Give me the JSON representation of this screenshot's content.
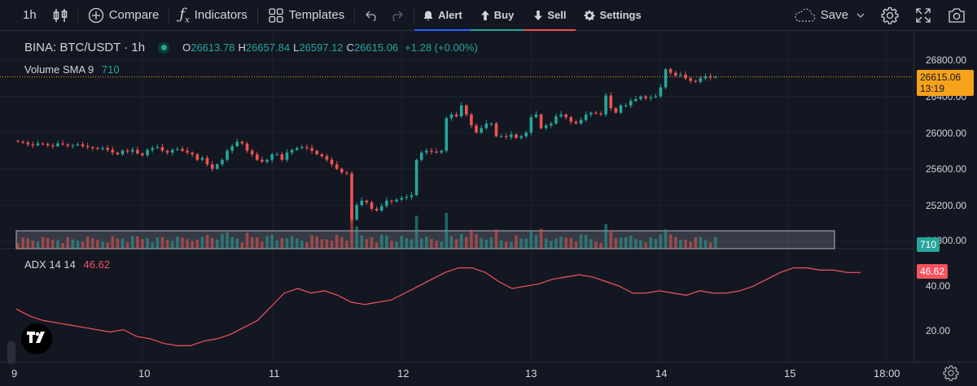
{
  "toolbar": {
    "interval": "1h",
    "compare_label": "Compare",
    "indicators_label": "Indicators",
    "templates_label": "Templates",
    "alert_label": "Alert",
    "buy_label": "Buy",
    "sell_label": "Sell",
    "settings_label": "Settings",
    "save_label": "Save",
    "icons": [
      "bar-style-icon",
      "compare-plus-icon",
      "fx-icon",
      "templates-grid-icon",
      "undo-icon",
      "redo-icon",
      "alarm-icon",
      "arrow-up-icon",
      "arrow-down-icon",
      "gear-icon",
      "cloud-icon",
      "chevron-down-icon",
      "settings-gear-icon",
      "fullscreen-icon",
      "snapshot-icon"
    ]
  },
  "legend": {
    "symbol": "BINA: BTC/USDT · 1h",
    "o_key": "O",
    "o_val": "26613.78",
    "h_key": "H",
    "h_val": "26657.84",
    "l_key": "L",
    "l_val": "26597.12",
    "c_key": "C",
    "c_val": "26615.06",
    "change": "+1.28 (+0.00%)",
    "volume_name": "Volume SMA 9",
    "volume_val": "710",
    "adx_name": "ADX 14 14",
    "adx_val": "46.62"
  },
  "price_scale": {
    "labels": [
      "26800.00",
      "26400.00",
      "26000.00",
      "25600.00",
      "25200.00",
      "24800.00"
    ],
    "last_price": "26615.06",
    "countdown": "13:19",
    "volume_tag": "710",
    "adx_labels": [
      "40.00",
      "20.00"
    ],
    "adx_tag": "46.62"
  },
  "time_axis": {
    "labels": [
      "9",
      "10",
      "11",
      "12",
      "13",
      "14",
      "15",
      "18:00"
    ]
  },
  "colors": {
    "up": "#26a69a",
    "down": "#ef5350",
    "adx_line": "#f7525f",
    "last_price_tag": "#f7a21b",
    "background": "#131722"
  },
  "chart_data": {
    "type": "candlestick",
    "ohlc": {
      "open": 26613.78,
      "high": 26657.84,
      "low": 26597.12,
      "close": 26615.06
    },
    "price_range": [
      24800,
      26850
    ],
    "closes": [
      25900,
      25890,
      25870,
      25860,
      25880,
      25875,
      25860,
      25850,
      25880,
      25870,
      25855,
      25860,
      25870,
      25850,
      25840,
      25830,
      25820,
      25830,
      25810,
      25780,
      25760,
      25800,
      25790,
      25810,
      25770,
      25750,
      25810,
      25830,
      25840,
      25800,
      25780,
      25810,
      25820,
      25800,
      25780,
      25760,
      25700,
      25720,
      25650,
      25600,
      25650,
      25700,
      25800,
      25850,
      25900,
      25880,
      25800,
      25760,
      25700,
      25680,
      25700,
      25760,
      25760,
      25700,
      25780,
      25810,
      25830,
      25840,
      25830,
      25800,
      25760,
      25740,
      25700,
      25650,
      25600,
      25560,
      25550,
      25040,
      25200,
      25250,
      25230,
      25160,
      25140,
      25190,
      25250,
      25240,
      25260,
      25280,
      25290,
      25310,
      25700,
      25780,
      25800,
      25790,
      25780,
      25800,
      26160,
      26200,
      26180,
      26300,
      26200,
      26080,
      26000,
      26050,
      26100,
      26100,
      25960,
      25960,
      25950,
      25980,
      25940,
      25960,
      26000,
      26170,
      26200,
      26050,
      26080,
      26100,
      26180,
      26200,
      26170,
      26120,
      26100,
      26140,
      26200,
      26220,
      26210,
      26200,
      26410,
      26270,
      26220,
      26300,
      26300,
      26350,
      26370,
      26400,
      26380,
      26390,
      26400,
      26500,
      26700,
      26660,
      26630,
      26640,
      26600,
      26570,
      26560,
      26600,
      26620,
      26610,
      26615.06
    ],
    "volume_sma": 710,
    "adx": {
      "period": "14 14",
      "last": 46.62,
      "range": [
        12,
        50
      ],
      "values": [
        30,
        27,
        25,
        24,
        23,
        22,
        21,
        20,
        21,
        18,
        17,
        15,
        14,
        14,
        16,
        17,
        19,
        22,
        25,
        31,
        37,
        39,
        37,
        38,
        36,
        33,
        32,
        33,
        34,
        37,
        40,
        43,
        46,
        48,
        48,
        46,
        42,
        39,
        40,
        41,
        43,
        44,
        45,
        44,
        42,
        40,
        37,
        37,
        38,
        37,
        36,
        38,
        37,
        37,
        38,
        40,
        43,
        46,
        48,
        48,
        47,
        47,
        46,
        46
      ]
    },
    "x_labels": [
      "9",
      "10",
      "11",
      "12",
      "13",
      "14",
      "15",
      "18:00"
    ]
  }
}
